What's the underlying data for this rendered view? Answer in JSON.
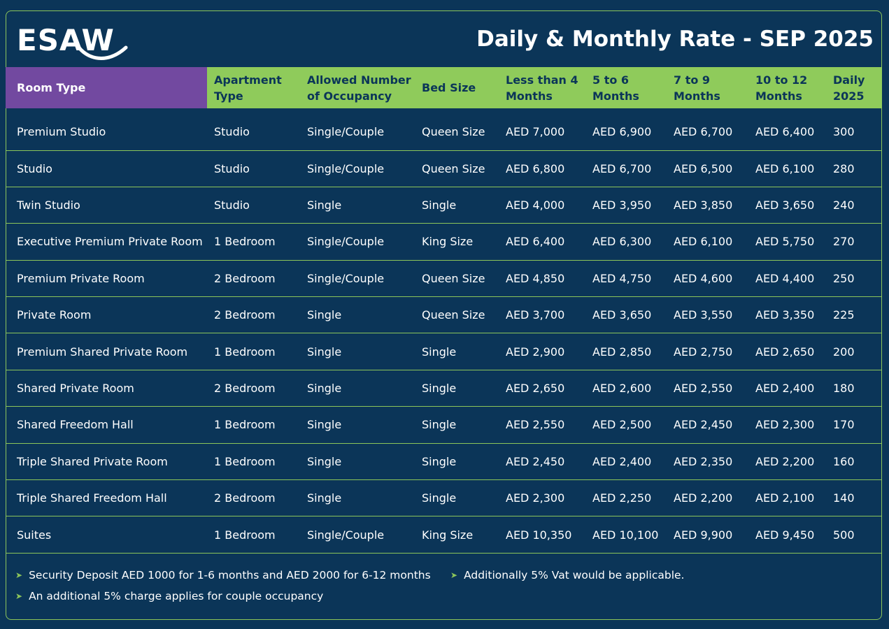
{
  "brand": {
    "name": "ESAW",
    "accent_color": "#8fcb5b",
    "header_purple": "#7249a0",
    "background": "#0b3558"
  },
  "title": "Daily & Monthly Rate - SEP 2025",
  "columns": [
    "Room Type",
    "Apartment Type",
    "Allowed Number of Occupancy",
    "Bed Size",
    "Less than 4 Months",
    "5 to 6 Months",
    "7 to 9 Months",
    "10 to 12 Months",
    "Daily 2025"
  ],
  "rows": [
    [
      "Premium Studio",
      "Studio",
      "Single/Couple",
      "Queen Size",
      "AED 7,000",
      "AED 6,900",
      "AED 6,700",
      "AED 6,400",
      "300"
    ],
    [
      "Studio",
      "Studio",
      "Single/Couple",
      "Queen Size",
      "AED 6,800",
      "AED 6,700",
      "AED 6,500",
      "AED 6,100",
      "280"
    ],
    [
      "Twin Studio",
      "Studio",
      "Single",
      "Single",
      "AED 4,000",
      "AED 3,950",
      "AED 3,850",
      "AED 3,650",
      "240"
    ],
    [
      "Executive Premium Private Room",
      "1 Bedroom",
      "Single/Couple",
      "King Size",
      "AED 6,400",
      "AED 6,300",
      "AED 6,100",
      "AED 5,750",
      "270"
    ],
    [
      "Premium Private Room",
      "2 Bedroom",
      "Single/Couple",
      "Queen Size",
      "AED 4,850",
      "AED 4,750",
      "AED 4,600",
      "AED 4,400",
      "250"
    ],
    [
      "Private Room",
      "2 Bedroom",
      "Single",
      "Queen Size",
      "AED 3,700",
      "AED 3,650",
      "AED 3,550",
      "AED 3,350",
      "225"
    ],
    [
      "Premium Shared Private Room",
      "1 Bedroom",
      "Single",
      "Single",
      "AED 2,900",
      "AED 2,850",
      "AED 2,750",
      "AED 2,650",
      "200"
    ],
    [
      "Shared Private Room",
      "2 Bedroom",
      "Single",
      "Single",
      "AED 2,650",
      "AED 2,600",
      "AED 2,550",
      "AED 2,400",
      "180"
    ],
    [
      "Shared Freedom Hall",
      "1 Bedroom",
      "Single",
      "Single",
      "AED 2,550",
      "AED 2,500",
      "AED 2,450",
      "AED 2,300",
      "170"
    ],
    [
      "Triple Shared Private Room",
      "1 Bedroom",
      "Single",
      "Single",
      "AED 2,450",
      "AED 2,400",
      "AED 2,350",
      "AED 2,200",
      "160"
    ],
    [
      "Triple Shared Freedom Hall",
      "2 Bedroom",
      "Single",
      "Single",
      "AED 2,300",
      "AED 2,250",
      "AED 2,200",
      "AED 2,100",
      "140"
    ],
    [
      "Suites",
      "1 Bedroom",
      "Single/Couple",
      "King Size",
      "AED 10,350",
      "AED 10,100",
      "AED 9,900",
      "AED 9,450",
      "500"
    ]
  ],
  "notes": [
    "Security Deposit AED 1000 for 1-6 months and AED 2000 for 6-12 months",
    "Additionally 5% Vat would be applicable.",
    "An additional 5% charge applies for couple occupancy"
  ],
  "note_bullet_icon": "chevron-right-icon"
}
